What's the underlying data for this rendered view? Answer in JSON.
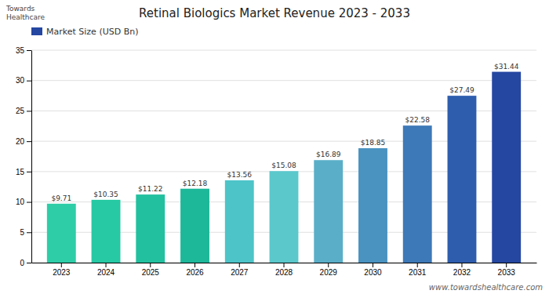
{
  "chart_data": {
    "type": "bar",
    "title": "Retinal Biologics Market Revenue 2023 - 2033",
    "categories": [
      "2023",
      "2024",
      "2025",
      "2026",
      "2027",
      "2028",
      "2029",
      "2030",
      "2031",
      "2032",
      "2033"
    ],
    "series": [
      {
        "name": "Market Size (USD Bn)",
        "values": [
          9.71,
          10.35,
          11.22,
          12.18,
          13.56,
          15.08,
          16.89,
          18.85,
          22.58,
          27.49,
          31.44
        ],
        "value_labels": [
          "$9.71",
          "$10.35",
          "$11.22",
          "$12.18",
          "$13.56",
          "$15.08",
          "$16.89",
          "$18.85",
          "$22.58",
          "$27.49",
          "$31.44"
        ],
        "colors": [
          "#2ECDA7",
          "#26C9A3",
          "#22C09E",
          "#1DB89A",
          "#4DC4C8",
          "#5BC8CC",
          "#5AAEC8",
          "#4A92C0",
          "#3D78B8",
          "#2E5DAE",
          "#2547A2"
        ]
      }
    ],
    "ylim": [
      0,
      35
    ],
    "yticks": [
      0,
      5,
      10,
      15,
      20,
      25,
      30,
      35
    ],
    "grid": true,
    "legend": "top-left",
    "data_labels": true,
    "annotations": [
      "Towards\nHealthcare",
      "www.towardshealthcare.com"
    ]
  }
}
